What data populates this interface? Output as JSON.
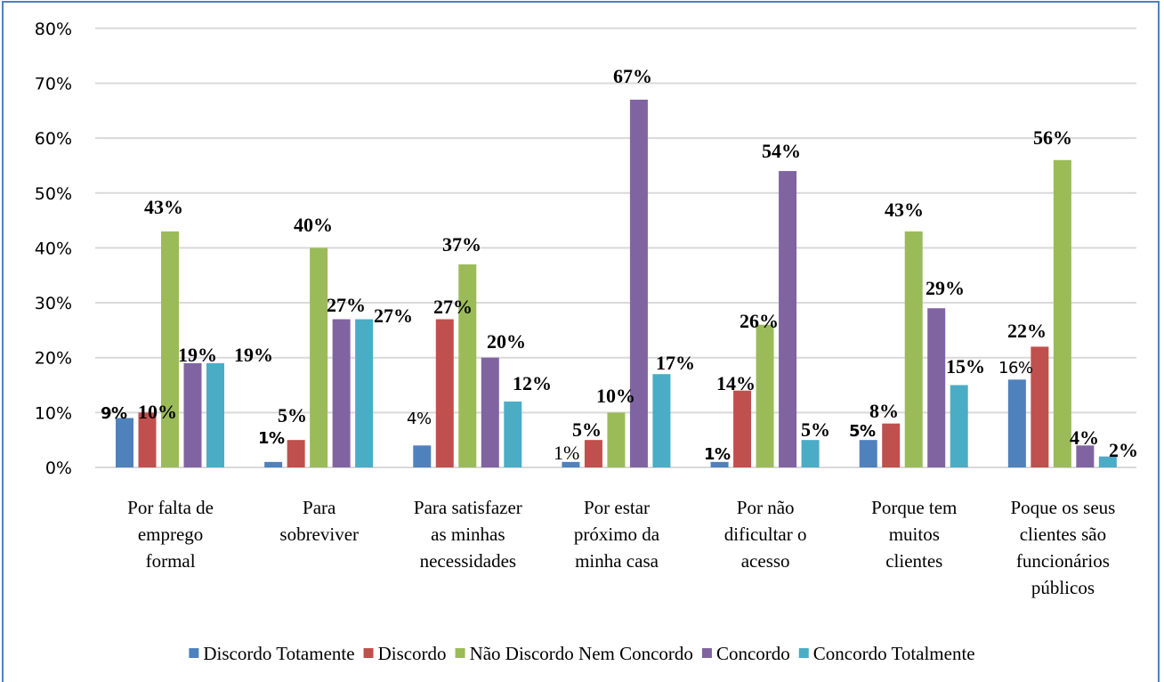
{
  "chart_data": {
    "type": "bar",
    "title": "",
    "xlabel": "",
    "ylabel": "",
    "ylim": [
      0,
      80
    ],
    "y_ticks": [
      "0%",
      "10%",
      "20%",
      "30%",
      "40%",
      "50%",
      "60%",
      "70%",
      "80%"
    ],
    "grid": true,
    "legend_position": "bottom",
    "categories": [
      [
        "Por falta de",
        "emprego",
        "formal"
      ],
      [
        "Para",
        "sobreviver"
      ],
      [
        "Para satisfazer",
        "as minhas",
        "necessidades"
      ],
      [
        "Por estar",
        "próximo da",
        "minha casa"
      ],
      [
        "Por não",
        "dificultar o",
        "acesso"
      ],
      [
        "Porque tem",
        "muitos",
        "clientes"
      ],
      [
        "Poque os seus",
        "clientes são",
        "funcionários",
        "públicos"
      ]
    ],
    "series": [
      {
        "name": "Discordo Totamente",
        "color": "#4f81bd",
        "values": [
          9,
          1,
          4,
          1,
          1,
          5,
          16
        ],
        "labels": [
          "9%",
          "1%",
          "4%",
          "1%",
          "1%",
          "5%",
          "16%"
        ]
      },
      {
        "name": "Discordo",
        "color": "#c0504d",
        "values": [
          10,
          5,
          27,
          5,
          14,
          8,
          22
        ],
        "labels": [
          "10%",
          "5%",
          "27%",
          "5%",
          "14%",
          "8%",
          "22%"
        ]
      },
      {
        "name": "Não Discordo Nem Concordo",
        "color": "#9bbb59",
        "values": [
          43,
          40,
          37,
          10,
          26,
          43,
          56
        ],
        "labels": [
          "43%",
          "40%",
          "37%",
          "10%",
          "26%",
          "43%",
          "56%"
        ]
      },
      {
        "name": "Concordo",
        "color": "#8064a2",
        "values": [
          19,
          27,
          20,
          67,
          54,
          29,
          4
        ],
        "labels": [
          "19%",
          "27%",
          "20%",
          "67%",
          "54%",
          "29%",
          "4%"
        ]
      },
      {
        "name": "Concordo Totalmente",
        "color": "#4bacc6",
        "values": [
          19,
          27,
          12,
          17,
          5,
          15,
          2
        ],
        "labels": [
          "19%",
          "27%",
          "12%",
          "17%",
          "5%",
          "15%",
          "2%"
        ]
      }
    ]
  }
}
